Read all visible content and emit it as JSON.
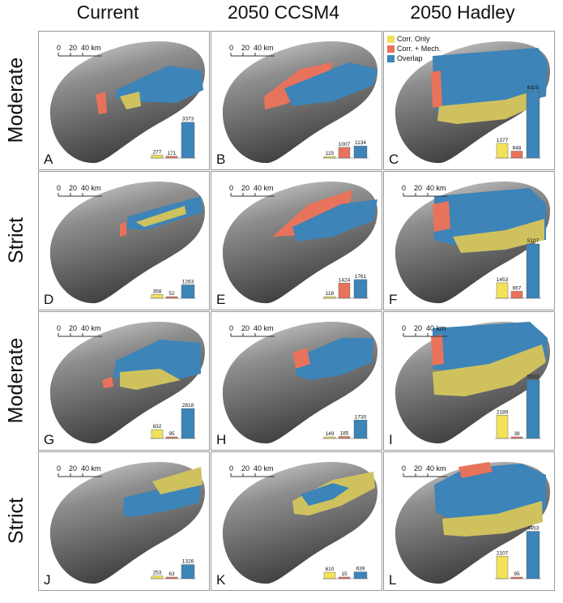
{
  "colors": {
    "corr_only": "#f2e25b",
    "corr_mech": "#e8735c",
    "overlap": "#3d84b8",
    "sand": "#cfc25e"
  },
  "columns": [
    {
      "label": "Current"
    },
    {
      "label": "2050 CCSM4"
    },
    {
      "label": "2050 Hadley"
    }
  ],
  "rows": [
    {
      "label": "Moderate"
    },
    {
      "label": "Strict"
    },
    {
      "label": "Moderate"
    },
    {
      "label": "Strict"
    }
  ],
  "scale_bar": {
    "ticks": [
      "0",
      "20",
      "40 km"
    ]
  },
  "legend": {
    "items": [
      {
        "label": "Corr. Only",
        "color": "#f2e25b"
      },
      {
        "label": "Corr. + Mech.",
        "color": "#e8735c"
      },
      {
        "label": "Overlap",
        "color": "#3d84b8"
      }
    ]
  },
  "chart_data": [
    {
      "type": "bar",
      "panel": "A",
      "categories": [
        "Corr. Only",
        "Corr. + Mech.",
        "Overlap"
      ],
      "values": [
        277,
        171,
        3373
      ],
      "labels": [
        "277",
        "171",
        "3373"
      ]
    },
    {
      "type": "bar",
      "panel": "B",
      "categories": [
        "Corr. Only",
        "Corr. + Mech.",
        "Overlap"
      ],
      "values": [
        115,
        1007,
        1134
      ],
      "labels": [
        "115",
        "1007",
        "1134"
      ]
    },
    {
      "type": "bar",
      "panel": "C",
      "categories": [
        "Corr. Only",
        "Corr. + Mech.",
        "Overlap"
      ],
      "values": [
        1377,
        648,
        6325
      ],
      "labels": [
        "1377",
        "648",
        "6325"
      ]
    },
    {
      "type": "bar",
      "panel": "D",
      "categories": [
        "Corr. Only",
        "Corr. + Mech.",
        "Overlap"
      ],
      "values": [
        358,
        52,
        1263
      ],
      "labels": [
        "358",
        "52",
        "1263"
      ]
    },
    {
      "type": "bar",
      "panel": "E",
      "categories": [
        "Corr. Only",
        "Corr. + Mech.",
        "Overlap"
      ],
      "values": [
        118,
        1424,
        1761
      ],
      "labels": [
        "118",
        "1424",
        "1761"
      ]
    },
    {
      "type": "bar",
      "panel": "F",
      "categories": [
        "Corr. Only",
        "Corr. + Mech.",
        "Overlap"
      ],
      "values": [
        1453,
        657,
        5107
      ],
      "labels": [
        "1453",
        "657",
        "5107"
      ]
    },
    {
      "type": "bar",
      "panel": "G",
      "categories": [
        "Corr. Only",
        "Corr. + Mech.",
        "Overlap"
      ],
      "values": [
        832,
        95,
        2818
      ],
      "labels": [
        "832",
        "95",
        "2818"
      ]
    },
    {
      "type": "bar",
      "panel": "H",
      "categories": [
        "Corr. Only",
        "Corr. + Mech.",
        "Overlap"
      ],
      "values": [
        149,
        185,
        1730
      ],
      "labels": [
        "149",
        "185",
        "1730"
      ]
    },
    {
      "type": "bar",
      "panel": "I",
      "categories": [
        "Corr. Only",
        "Corr. + Mech.",
        "Overlap"
      ],
      "values": [
        2189,
        38,
        5533
      ],
      "labels": [
        "2189",
        "38",
        "5533"
      ]
    },
    {
      "type": "bar",
      "panel": "J",
      "categories": [
        "Corr. Only",
        "Corr. + Mech.",
        "Overlap"
      ],
      "values": [
        253,
        63,
        1326
      ],
      "labels": [
        "253",
        "63",
        "1326"
      ]
    },
    {
      "type": "bar",
      "panel": "K",
      "categories": [
        "Corr. Only",
        "Corr. + Mech.",
        "Overlap"
      ],
      "values": [
        610,
        15,
        639
      ],
      "labels": [
        "610",
        "15",
        "639"
      ]
    },
    {
      "type": "bar",
      "panel": "L",
      "categories": [
        "Corr. Only",
        "Corr. + Mech.",
        "Overlap"
      ],
      "values": [
        2107,
        95,
        4453
      ],
      "labels": [
        "2107",
        "95",
        "4453"
      ]
    }
  ]
}
